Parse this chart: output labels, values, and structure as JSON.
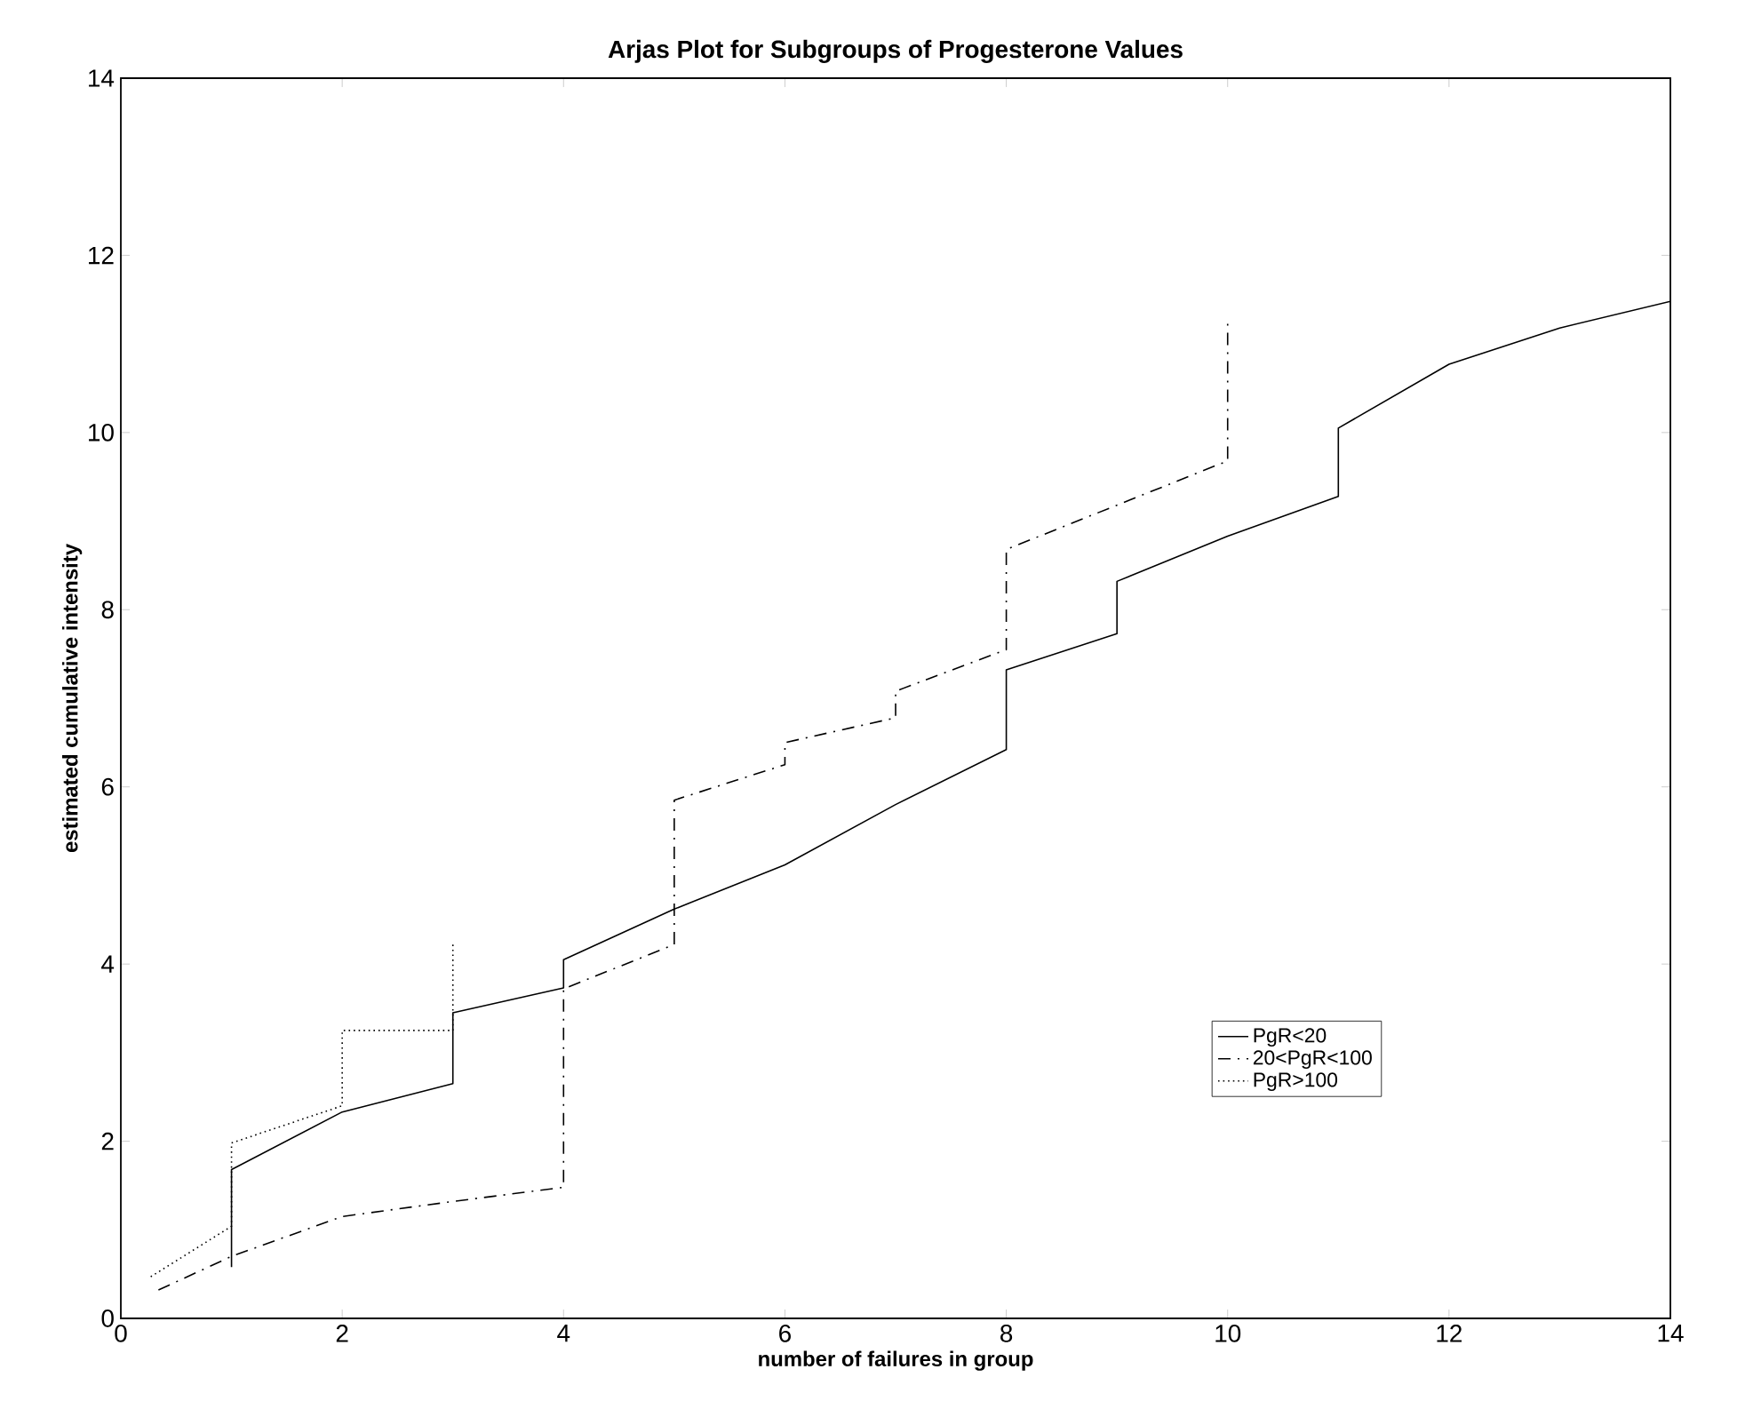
{
  "chart_data": {
    "type": "line",
    "title": "Arjas Plot for Subgroups of Progesterone Values",
    "xlabel": "number of failures in group",
    "ylabel": "estimated cumulative intensity",
    "xlim": [
      0,
      14
    ],
    "xticks": [
      0,
      2,
      4,
      6,
      8,
      10,
      12,
      14
    ],
    "ylim": [
      0,
      14
    ],
    "yticks": [
      0,
      2,
      4,
      6,
      8,
      10,
      12,
      14
    ],
    "legend": "bottom right",
    "marker": "none",
    "grid": false,
    "series": [
      {
        "name": "PgR<20",
        "color": "#000000",
        "line_style": "solid",
        "x": [
          1,
          1,
          2,
          3,
          3,
          4,
          4,
          5,
          6,
          7,
          8,
          8,
          9,
          9,
          10,
          11,
          11,
          12,
          13,
          14
        ],
        "values": [
          0.58,
          1.68,
          2.33,
          2.65,
          3.45,
          3.73,
          4.05,
          4.62,
          5.12,
          5.8,
          6.42,
          7.32,
          7.73,
          8.32,
          8.83,
          9.28,
          10.05,
          10.77,
          11.18,
          11.48
        ]
      },
      {
        "name": "20<PgR<100",
        "color": "#000000",
        "line_style": "dashdot",
        "x": [
          0.34,
          1,
          2,
          3,
          4,
          4,
          5,
          5,
          6,
          6,
          7,
          7,
          8,
          8,
          9,
          10,
          10
        ],
        "values": [
          0.32,
          0.7,
          1.15,
          1.32,
          1.48,
          3.72,
          4.22,
          5.85,
          6.25,
          6.5,
          6.78,
          7.08,
          7.55,
          8.68,
          9.18,
          9.68,
          11.3
        ]
      },
      {
        "name": "PgR>100",
        "color": "#000000",
        "line_style": "dotted",
        "x": [
          0.27,
          1,
          1,
          2,
          2,
          3,
          3
        ],
        "values": [
          0.47,
          1.04,
          1.98,
          2.4,
          3.25,
          3.25,
          4.25
        ]
      }
    ]
  }
}
